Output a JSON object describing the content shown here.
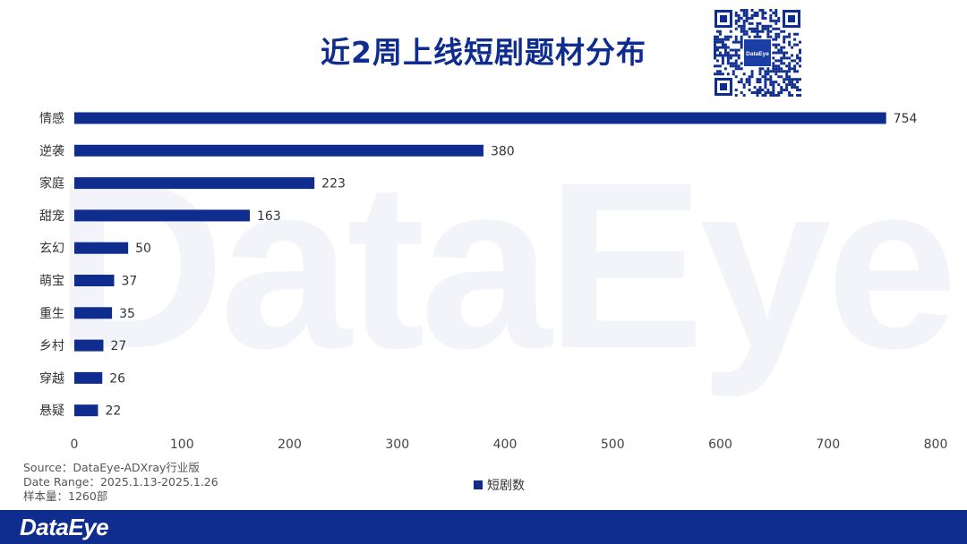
{
  "header": {
    "title": "近2周上线短剧题材分布"
  },
  "brand": {
    "name": "DataEye"
  },
  "colors": {
    "bar": "#0e2d8f",
    "title": "#0e2d8f",
    "footer": "#0e2d8f"
  },
  "source": {
    "line1": "Source：DataEye-ADXray行业版",
    "line2": "Date Range：2025.1.13-2025.1.26",
    "line3": "样本量：1260部"
  },
  "chart_data": {
    "type": "bar",
    "orientation": "horizontal",
    "title": "近2周上线短剧题材分布",
    "categories": [
      "情感",
      "逆袭",
      "家庭",
      "甜宠",
      "玄幻",
      "萌宝",
      "重生",
      "乡村",
      "穿越",
      "悬疑"
    ],
    "series": [
      {
        "name": "短剧数",
        "values": [
          754,
          380,
          223,
          163,
          50,
          37,
          35,
          27,
          26,
          22
        ]
      }
    ],
    "xlim": [
      0,
      800
    ],
    "xticks": [
      0,
      100,
      200,
      300,
      400,
      500,
      600,
      700,
      800
    ],
    "grid": false,
    "legend_position": "bottom"
  }
}
